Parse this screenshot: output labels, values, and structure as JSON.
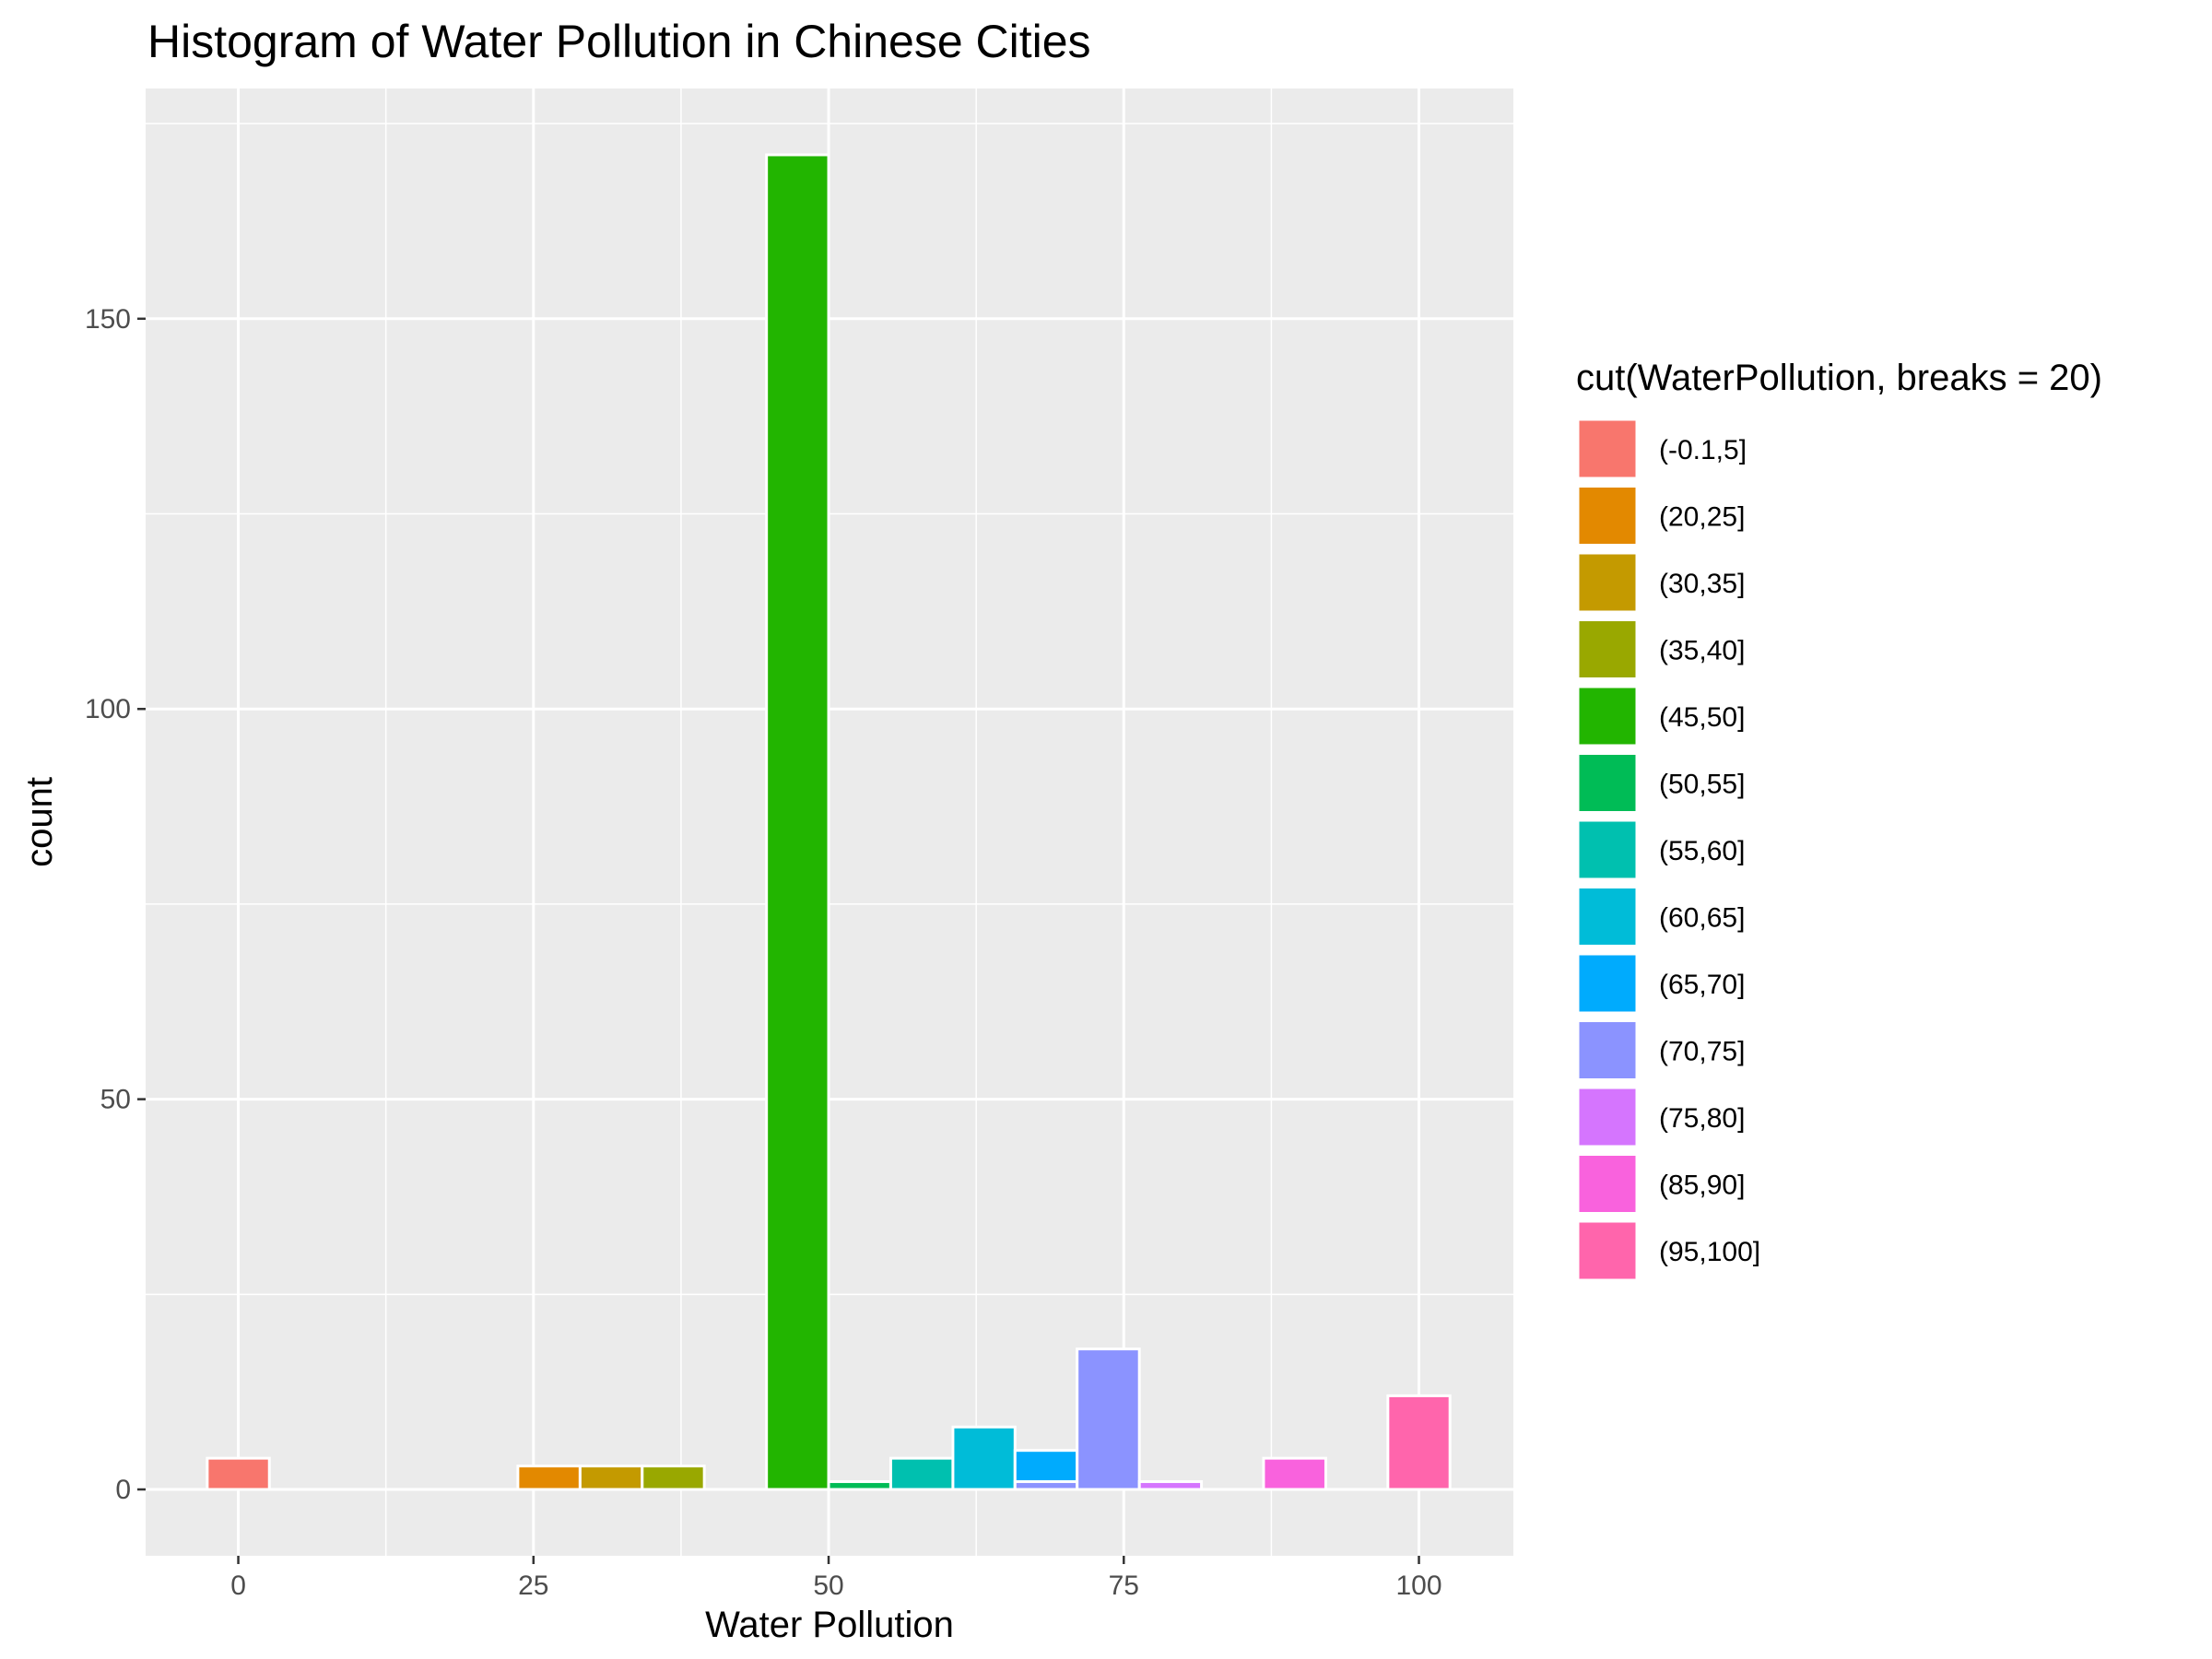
{
  "chart_data": {
    "type": "bar",
    "title": "Histogram of Water Pollution in Chinese Cities",
    "xlabel": "Water Pollution",
    "ylabel": "count",
    "xlim": [
      -7.85,
      108
    ],
    "ylim": [
      -8.5,
      179.5
    ],
    "x_ticks": [
      0,
      25,
      50,
      75,
      100
    ],
    "x_tick_labels": [
      "0",
      "25",
      "50",
      "75",
      "100"
    ],
    "x_minor_gridlines": [
      12.5,
      37.5,
      62.5,
      87.5
    ],
    "y_ticks": [
      0,
      50,
      100,
      150
    ],
    "y_tick_labels": [
      "0",
      "50",
      "100",
      "150"
    ],
    "y_minor_gridlines": [
      25,
      75,
      125,
      175
    ],
    "grid": true,
    "legend_position": "right",
    "legend_title": "cut(WaterPollution, breaks = 20)",
    "legend": [
      {
        "label": "(-0.1,5]",
        "color": "#F8766D"
      },
      {
        "label": "(20,25]",
        "color": "#E38900"
      },
      {
        "label": "(30,35]",
        "color": "#C49A00"
      },
      {
        "label": "(35,40]",
        "color": "#99A800"
      },
      {
        "label": "(45,50]",
        "color": "#22B500"
      },
      {
        "label": "(50,55]",
        "color": "#00BC56"
      },
      {
        "label": "(55,60]",
        "color": "#00C0AF"
      },
      {
        "label": "(60,65]",
        "color": "#00BCD8"
      },
      {
        "label": "(65,70]",
        "color": "#00ABFD"
      },
      {
        "label": "(70,75]",
        "color": "#8B93FF"
      },
      {
        "label": "(75,80]",
        "color": "#D575FE"
      },
      {
        "label": "(85,90]",
        "color": "#F962DD"
      },
      {
        "label": "(95,100]",
        "color": "#FF65AC"
      }
    ],
    "bin_width": 5.26,
    "bars": [
      {
        "x_start": -2.63,
        "x_end": 2.63,
        "count": 4,
        "group": "(-0.1,5]"
      },
      {
        "x_start": 23.68,
        "x_end": 28.95,
        "count": 3,
        "group": "(20,25]"
      },
      {
        "x_start": 28.95,
        "x_end": 34.21,
        "count": 3,
        "group": "(30,35]"
      },
      {
        "x_start": 34.21,
        "x_end": 39.47,
        "count": 3,
        "group": "(35,40]"
      },
      {
        "x_start": 44.74,
        "x_end": 50.0,
        "count": 171,
        "group": "(45,50]"
      },
      {
        "x_start": 50.0,
        "x_end": 55.26,
        "count": 1,
        "group": "(50,55]"
      },
      {
        "x_start": 55.26,
        "x_end": 60.53,
        "count": 4,
        "group": "(55,60]"
      },
      {
        "x_start": 60.53,
        "x_end": 65.79,
        "count": 8,
        "group": "(60,65]"
      },
      {
        "x_start": 65.79,
        "x_end": 71.05,
        "count": 5,
        "group": "(65,70]"
      },
      {
        "x_start": 65.79,
        "x_end": 71.05,
        "count": 1,
        "group": "(70,75]",
        "stack_base": 0
      },
      {
        "x_start": 71.05,
        "x_end": 76.32,
        "count": 18,
        "group": "(70,75]"
      },
      {
        "x_start": 76.32,
        "x_end": 81.58,
        "count": 1,
        "group": "(75,80]"
      },
      {
        "x_start": 86.84,
        "x_end": 92.11,
        "count": 4,
        "group": "(85,90]"
      },
      {
        "x_start": 97.37,
        "x_end": 102.63,
        "count": 12,
        "group": "(95,100]"
      }
    ]
  }
}
